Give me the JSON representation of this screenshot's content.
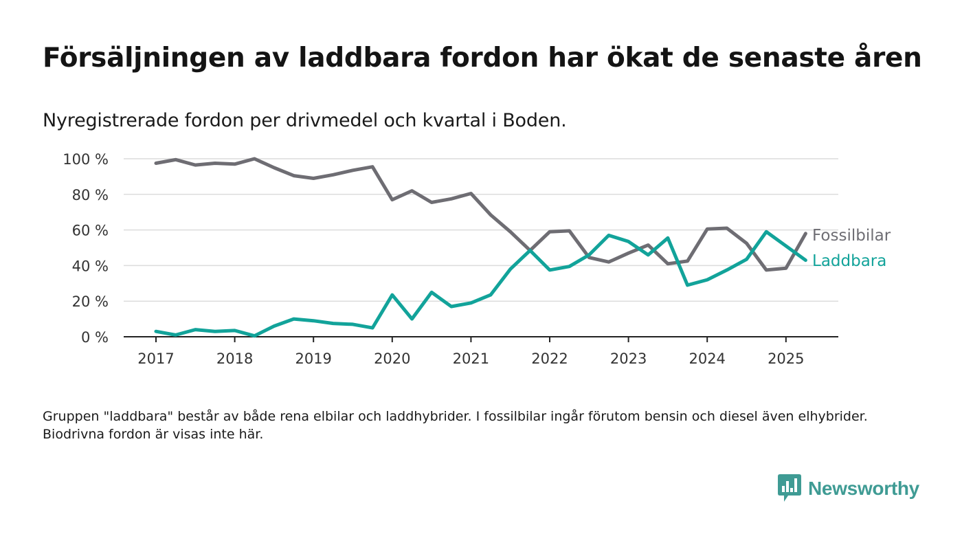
{
  "title": "Försäljningen av laddbara fordon har ökat de senaste åren",
  "subtitle": "Nyregistrerade fordon per drivmedel och kvartal i Boden.",
  "footnote": "Gruppen \"laddbara\" består av både rena elbilar och laddhybrider. I fossilbilar ingår förutom bensin och diesel även elhybrider. Biodrivna fordon är visas inte här.",
  "brand": {
    "name": "Newsworthy",
    "icon": "newsworthy-logo-icon",
    "color": "#3f9b94"
  },
  "chart_data": {
    "type": "line",
    "title": "",
    "xlabel": "",
    "ylabel": "",
    "xlim": [
      2016.6,
      2025.9
    ],
    "ylim": [
      0,
      100
    ],
    "y_ticks": [
      0,
      20,
      40,
      60,
      80,
      100
    ],
    "y_tick_labels": [
      "0 %",
      "20 %",
      "40 %",
      "60 %",
      "80 %",
      "100 %"
    ],
    "x_ticks": [
      2017,
      2018,
      2019,
      2020,
      2021,
      2022,
      2023,
      2024,
      2025
    ],
    "x_tick_labels": [
      "2017",
      "2018",
      "2019",
      "2020",
      "2021",
      "2022",
      "2023",
      "2024",
      "2025"
    ],
    "grid": "horizontal",
    "legend": "direct labels at right end of lines",
    "x": [
      2017.0,
      2017.25,
      2017.5,
      2017.75,
      2018.0,
      2018.25,
      2018.5,
      2018.75,
      2019.0,
      2019.25,
      2019.5,
      2019.75,
      2020.0,
      2020.25,
      2020.5,
      2020.75,
      2021.0,
      2021.25,
      2021.5,
      2021.75,
      2022.0,
      2022.25,
      2022.5,
      2022.75,
      2023.0,
      2023.25,
      2023.5,
      2023.75,
      2024.0,
      2024.25,
      2024.5,
      2024.75,
      2025.0,
      2025.25
    ],
    "series": [
      {
        "name": "Fossilbilar",
        "color": "#6e6d73",
        "values": [
          97.5,
          99.5,
          96.5,
          97.5,
          97,
          100,
          95,
          90.5,
          89,
          91,
          93.5,
          95.5,
          77,
          82,
          75.5,
          77.5,
          80.5,
          68.5,
          59,
          48.5,
          59,
          59.5,
          44.5,
          42,
          47,
          51.5,
          41,
          42.5,
          60.5,
          61,
          52.5,
          37.5,
          38.5,
          58
        ]
      },
      {
        "name": "Laddbara",
        "color": "#12a39a",
        "values": [
          3,
          1,
          4,
          3,
          3.5,
          0.5,
          6,
          10,
          9,
          7.5,
          7,
          5,
          23.5,
          10,
          25,
          17,
          19,
          23.5,
          38,
          48.5,
          37.5,
          39.5,
          46,
          57,
          53.5,
          46,
          55.5,
          29,
          32,
          37.5,
          43.5,
          59,
          51,
          43
        ]
      }
    ]
  }
}
